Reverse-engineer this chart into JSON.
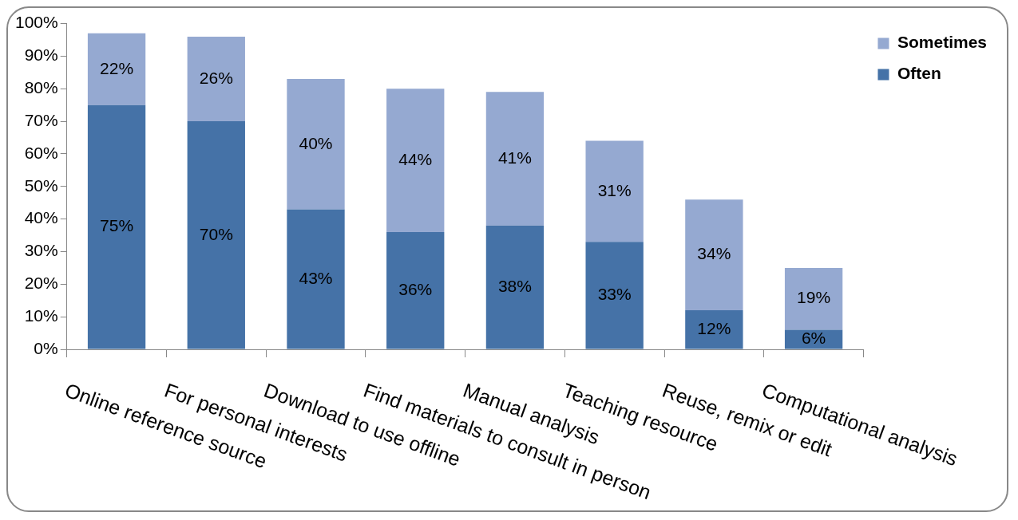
{
  "chart_data": {
    "type": "bar",
    "stacked": true,
    "categories": [
      "Online reference source",
      "For personal interests",
      "Download to use offline",
      "Find materials to consult in person",
      "Manual analysis",
      "Teaching resource",
      "Reuse, remix or edit",
      "Computational analysis"
    ],
    "series": [
      {
        "name": "Often",
        "color": "#4572a7",
        "values": [
          75,
          70,
          43,
          36,
          38,
          33,
          12,
          6
        ],
        "value_labels": [
          "75%",
          "70%",
          "43%",
          "36%",
          "38%",
          "33%",
          "12%",
          "6%"
        ]
      },
      {
        "name": "Sometimes",
        "color": "#95a9d1",
        "values": [
          22,
          26,
          40,
          44,
          41,
          31,
          34,
          19
        ],
        "value_labels": [
          "22%",
          "26%",
          "40%",
          "44%",
          "41%",
          "31%",
          "34%",
          "19%"
        ]
      }
    ],
    "ylim": [
      0,
      100
    ],
    "yticks": [
      {
        "value": 0,
        "label": "0%"
      },
      {
        "value": 10,
        "label": "10%"
      },
      {
        "value": 20,
        "label": "20%"
      },
      {
        "value": 30,
        "label": "30%"
      },
      {
        "value": 40,
        "label": "40%"
      },
      {
        "value": 50,
        "label": "50%"
      },
      {
        "value": 60,
        "label": "60%"
      },
      {
        "value": 70,
        "label": "70%"
      },
      {
        "value": 80,
        "label": "80%"
      },
      {
        "value": 90,
        "label": "90%"
      },
      {
        "value": 100,
        "label": "100%"
      }
    ],
    "legend": "top right",
    "grid": false
  }
}
